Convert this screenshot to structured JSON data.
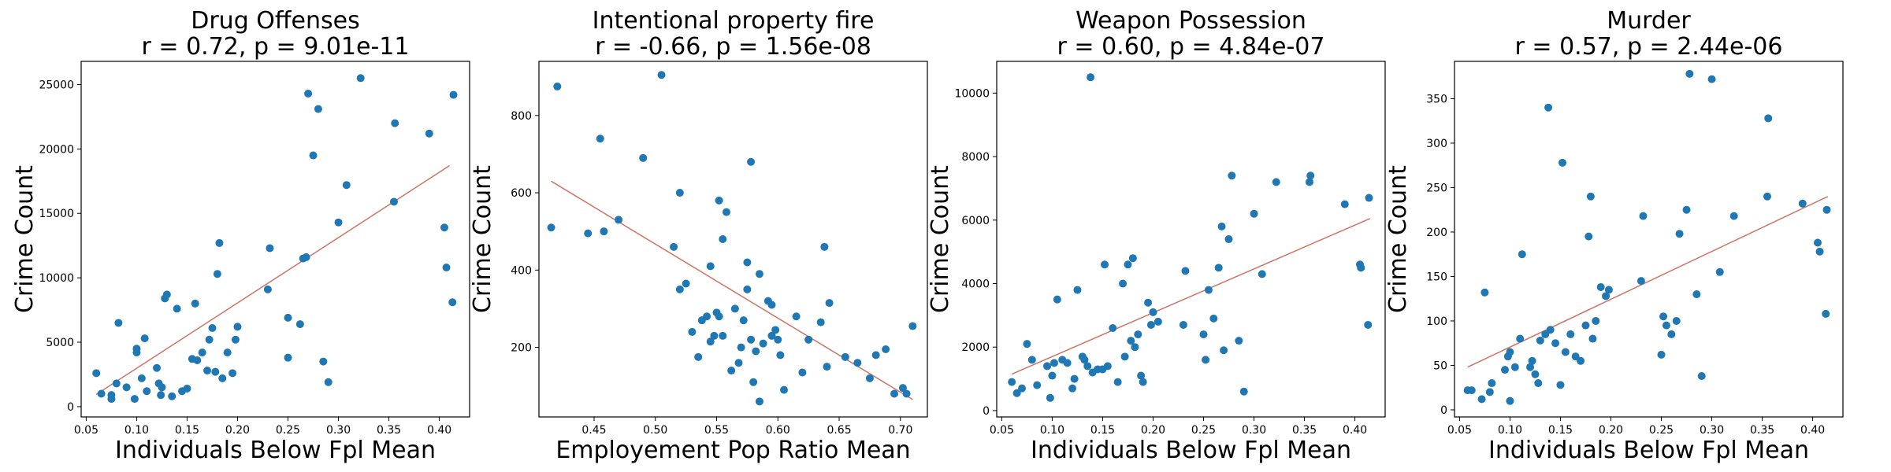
{
  "chart_data": [
    {
      "type": "scatter",
      "title_line1": "Drug Offenses",
      "title_line2": "r = 0.72, p = 9.01e-11",
      "xlabel": "Individuals Below Fpl Mean",
      "ylabel": "Crime Count",
      "xlim": [
        0.045,
        0.43
      ],
      "ylim": [
        -800,
        26800
      ],
      "xticks": [
        0.05,
        0.1,
        0.15,
        0.2,
        0.25,
        0.3,
        0.35,
        0.4
      ],
      "xtick_labels": [
        "0.05",
        "0.10",
        "0.15",
        "0.20",
        "0.25",
        "0.30",
        "0.35",
        "0.40"
      ],
      "yticks": [
        0,
        5000,
        10000,
        15000,
        20000,
        25000
      ],
      "ytick_labels": [
        "0",
        "5000",
        "10000",
        "15000",
        "20000",
        "25000"
      ],
      "points": [
        [
          0.06,
          2600
        ],
        [
          0.065,
          1000
        ],
        [
          0.075,
          900
        ],
        [
          0.075,
          600
        ],
        [
          0.08,
          1800
        ],
        [
          0.082,
          6500
        ],
        [
          0.09,
          1500
        ],
        [
          0.1,
          4500
        ],
        [
          0.1,
          4200
        ],
        [
          0.098,
          600
        ],
        [
          0.105,
          2200
        ],
        [
          0.108,
          5300
        ],
        [
          0.11,
          1200
        ],
        [
          0.12,
          3000
        ],
        [
          0.122,
          1800
        ],
        [
          0.124,
          900
        ],
        [
          0.125,
          1500
        ],
        [
          0.128,
          8400
        ],
        [
          0.13,
          8700
        ],
        [
          0.135,
          800
        ],
        [
          0.14,
          7600
        ],
        [
          0.145,
          1200
        ],
        [
          0.15,
          1400
        ],
        [
          0.155,
          3700
        ],
        [
          0.158,
          8000
        ],
        [
          0.16,
          3600
        ],
        [
          0.165,
          4200
        ],
        [
          0.17,
          2800
        ],
        [
          0.172,
          5200
        ],
        [
          0.175,
          6100
        ],
        [
          0.178,
          2700
        ],
        [
          0.18,
          10300
        ],
        [
          0.182,
          12700
        ],
        [
          0.185,
          2200
        ],
        [
          0.19,
          4200
        ],
        [
          0.195,
          2600
        ],
        [
          0.198,
          5200
        ],
        [
          0.2,
          6200
        ],
        [
          0.23,
          9100
        ],
        [
          0.232,
          12300
        ],
        [
          0.25,
          6900
        ],
        [
          0.25,
          3800
        ],
        [
          0.262,
          6400
        ],
        [
          0.265,
          11500
        ],
        [
          0.268,
          11600
        ],
        [
          0.27,
          24300
        ],
        [
          0.275,
          19500
        ],
        [
          0.28,
          23100
        ],
        [
          0.285,
          3500
        ],
        [
          0.29,
          1900
        ],
        [
          0.3,
          14300
        ],
        [
          0.308,
          17200
        ],
        [
          0.322,
          25500
        ],
        [
          0.355,
          15900
        ],
        [
          0.356,
          22000
        ],
        [
          0.39,
          21200
        ],
        [
          0.405,
          13900
        ],
        [
          0.407,
          10800
        ],
        [
          0.413,
          8100
        ],
        [
          0.414,
          24200
        ]
      ],
      "trend": [
        [
          0.06,
          950
        ],
        [
          0.41,
          18700
        ]
      ],
      "point_color": "#1f77b4",
      "line_color": "#cd7366"
    },
    {
      "type": "scatter",
      "title_line1": "Intentional property fire",
      "title_line2": "r = -0.66, p = 1.56e-08",
      "xlabel": "Employement Pop Ratio Mean",
      "ylabel": "Crime Count",
      "xlim": [
        0.405,
        0.722
      ],
      "ylim": [
        20,
        940
      ],
      "xticks": [
        0.45,
        0.5,
        0.55,
        0.6,
        0.65,
        0.7
      ],
      "xtick_labels": [
        "0.45",
        "0.50",
        "0.55",
        "0.60",
        "0.65",
        "0.70"
      ],
      "yticks": [
        200,
        400,
        600,
        800
      ],
      "ytick_labels": [
        "200",
        "400",
        "600",
        "800"
      ],
      "points": [
        [
          0.415,
          510
        ],
        [
          0.42,
          875
        ],
        [
          0.445,
          495
        ],
        [
          0.455,
          740
        ],
        [
          0.458,
          500
        ],
        [
          0.47,
          530
        ],
        [
          0.49,
          690
        ],
        [
          0.505,
          905
        ],
        [
          0.515,
          460
        ],
        [
          0.52,
          350
        ],
        [
          0.52,
          600
        ],
        [
          0.525,
          365
        ],
        [
          0.53,
          240
        ],
        [
          0.535,
          175
        ],
        [
          0.538,
          270
        ],
        [
          0.542,
          280
        ],
        [
          0.545,
          410
        ],
        [
          0.545,
          215
        ],
        [
          0.548,
          230
        ],
        [
          0.55,
          290
        ],
        [
          0.552,
          280
        ],
        [
          0.552,
          580
        ],
        [
          0.555,
          230
        ],
        [
          0.555,
          480
        ],
        [
          0.558,
          550
        ],
        [
          0.562,
          140
        ],
        [
          0.565,
          300
        ],
        [
          0.568,
          160
        ],
        [
          0.57,
          200
        ],
        [
          0.572,
          270
        ],
        [
          0.575,
          420
        ],
        [
          0.575,
          350
        ],
        [
          0.578,
          680
        ],
        [
          0.578,
          220
        ],
        [
          0.58,
          110
        ],
        [
          0.582,
          190
        ],
        [
          0.585,
          390
        ],
        [
          0.585,
          60
        ],
        [
          0.588,
          210
        ],
        [
          0.592,
          320
        ],
        [
          0.595,
          310
        ],
        [
          0.595,
          230
        ],
        [
          0.598,
          245
        ],
        [
          0.6,
          220
        ],
        [
          0.602,
          180
        ],
        [
          0.605,
          90
        ],
        [
          0.615,
          280
        ],
        [
          0.62,
          135
        ],
        [
          0.625,
          220
        ],
        [
          0.635,
          265
        ],
        [
          0.638,
          460
        ],
        [
          0.64,
          150
        ],
        [
          0.642,
          315
        ],
        [
          0.655,
          175
        ],
        [
          0.665,
          160
        ],
        [
          0.675,
          120
        ],
        [
          0.68,
          180
        ],
        [
          0.688,
          195
        ],
        [
          0.695,
          80
        ],
        [
          0.702,
          95
        ],
        [
          0.705,
          80
        ],
        [
          0.71,
          255
        ]
      ],
      "trend": [
        [
          0.415,
          630
        ],
        [
          0.71,
          65
        ]
      ],
      "point_color": "#1f77b4",
      "line_color": "#cd7366"
    },
    {
      "type": "scatter",
      "title_line1": "Weapon Possession",
      "title_line2": "r = 0.60, p = 4.84e-07",
      "xlabel": "Individuals Below Fpl Mean",
      "ylabel": "Crime Count",
      "xlim": [
        0.045,
        0.43
      ],
      "ylim": [
        -200,
        11000
      ],
      "xticks": [
        0.05,
        0.1,
        0.15,
        0.2,
        0.25,
        0.3,
        0.35,
        0.4
      ],
      "xtick_labels": [
        "0.05",
        "0.10",
        "0.15",
        "0.20",
        "0.25",
        "0.30",
        "0.35",
        "0.40"
      ],
      "yticks": [
        0,
        2000,
        4000,
        6000,
        8000,
        10000
      ],
      "ytick_labels": [
        "0",
        "2000",
        "4000",
        "6000",
        "8000",
        "10000"
      ],
      "points": [
        [
          0.06,
          900
        ],
        [
          0.065,
          550
        ],
        [
          0.07,
          700
        ],
        [
          0.075,
          2100
        ],
        [
          0.08,
          1600
        ],
        [
          0.085,
          800
        ],
        [
          0.095,
          1400
        ],
        [
          0.098,
          400
        ],
        [
          0.1,
          1100
        ],
        [
          0.102,
          1500
        ],
        [
          0.105,
          3500
        ],
        [
          0.11,
          1600
        ],
        [
          0.115,
          1500
        ],
        [
          0.12,
          700
        ],
        [
          0.122,
          1000
        ],
        [
          0.125,
          3800
        ],
        [
          0.13,
          1700
        ],
        [
          0.132,
          1600
        ],
        [
          0.135,
          1400
        ],
        [
          0.138,
          10500
        ],
        [
          0.14,
          1200
        ],
        [
          0.145,
          1300
        ],
        [
          0.15,
          1300
        ],
        [
          0.152,
          4600
        ],
        [
          0.155,
          1400
        ],
        [
          0.16,
          2600
        ],
        [
          0.165,
          900
        ],
        [
          0.17,
          4000
        ],
        [
          0.172,
          1700
        ],
        [
          0.175,
          4600
        ],
        [
          0.178,
          2200
        ],
        [
          0.18,
          4800
        ],
        [
          0.182,
          2000
        ],
        [
          0.185,
          2400
        ],
        [
          0.188,
          1100
        ],
        [
          0.19,
          900
        ],
        [
          0.195,
          3400
        ],
        [
          0.198,
          2700
        ],
        [
          0.2,
          3100
        ],
        [
          0.205,
          2800
        ],
        [
          0.23,
          2700
        ],
        [
          0.232,
          4400
        ],
        [
          0.25,
          2400
        ],
        [
          0.252,
          1600
        ],
        [
          0.255,
          3800
        ],
        [
          0.26,
          2900
        ],
        [
          0.265,
          4500
        ],
        [
          0.268,
          5800
        ],
        [
          0.27,
          1900
        ],
        [
          0.275,
          5400
        ],
        [
          0.278,
          7400
        ],
        [
          0.285,
          2200
        ],
        [
          0.29,
          600
        ],
        [
          0.3,
          6200
        ],
        [
          0.308,
          4300
        ],
        [
          0.322,
          7200
        ],
        [
          0.355,
          7200
        ],
        [
          0.356,
          7400
        ],
        [
          0.39,
          6500
        ],
        [
          0.405,
          4600
        ],
        [
          0.406,
          4500
        ],
        [
          0.413,
          2700
        ],
        [
          0.414,
          6700
        ]
      ],
      "trend": [
        [
          0.06,
          1150
        ],
        [
          0.415,
          6050
        ]
      ],
      "point_color": "#1f77b4",
      "line_color": "#cd7366"
    },
    {
      "type": "scatter",
      "title_line1": "Murder",
      "title_line2": "r = 0.57, p = 2.44e-06",
      "xlabel": "Individuals Below Fpl Mean",
      "ylabel": "Crime Count",
      "xlim": [
        0.045,
        0.43
      ],
      "ylim": [
        -8,
        392
      ],
      "xticks": [
        0.05,
        0.1,
        0.15,
        0.2,
        0.25,
        0.3,
        0.35,
        0.4
      ],
      "xtick_labels": [
        "0.05",
        "0.10",
        "0.15",
        "0.20",
        "0.25",
        "0.30",
        "0.35",
        "0.40"
      ],
      "yticks": [
        0,
        50,
        100,
        150,
        200,
        250,
        300,
        350
      ],
      "ytick_labels": [
        "0",
        "50",
        "100",
        "150",
        "200",
        "250",
        "300",
        "350"
      ],
      "points": [
        [
          0.058,
          22
        ],
        [
          0.062,
          22
        ],
        [
          0.072,
          12
        ],
        [
          0.075,
          132
        ],
        [
          0.08,
          20
        ],
        [
          0.082,
          30
        ],
        [
          0.095,
          45
        ],
        [
          0.098,
          60
        ],
        [
          0.1,
          65
        ],
        [
          0.1,
          10
        ],
        [
          0.105,
          48
        ],
        [
          0.11,
          80
        ],
        [
          0.112,
          175
        ],
        [
          0.12,
          48
        ],
        [
          0.122,
          55
        ],
        [
          0.125,
          40
        ],
        [
          0.128,
          30
        ],
        [
          0.13,
          78
        ],
        [
          0.135,
          85
        ],
        [
          0.138,
          340
        ],
        [
          0.14,
          90
        ],
        [
          0.145,
          75
        ],
        [
          0.15,
          28
        ],
        [
          0.152,
          278
        ],
        [
          0.155,
          65
        ],
        [
          0.16,
          85
        ],
        [
          0.165,
          60
        ],
        [
          0.17,
          55
        ],
        [
          0.175,
          95
        ],
        [
          0.178,
          195
        ],
        [
          0.18,
          240
        ],
        [
          0.182,
          80
        ],
        [
          0.185,
          100
        ],
        [
          0.19,
          138
        ],
        [
          0.195,
          128
        ],
        [
          0.198,
          135
        ],
        [
          0.23,
          145
        ],
        [
          0.232,
          218
        ],
        [
          0.25,
          62
        ],
        [
          0.252,
          105
        ],
        [
          0.255,
          95
        ],
        [
          0.26,
          85
        ],
        [
          0.265,
          100
        ],
        [
          0.268,
          198
        ],
        [
          0.275,
          225
        ],
        [
          0.278,
          378
        ],
        [
          0.285,
          130
        ],
        [
          0.29,
          38
        ],
        [
          0.3,
          372
        ],
        [
          0.308,
          155
        ],
        [
          0.322,
          218
        ],
        [
          0.355,
          240
        ],
        [
          0.356,
          328
        ],
        [
          0.39,
          232
        ],
        [
          0.405,
          188
        ],
        [
          0.407,
          178
        ],
        [
          0.413,
          108
        ],
        [
          0.414,
          225
        ]
      ],
      "trend": [
        [
          0.058,
          48
        ],
        [
          0.415,
          240
        ]
      ],
      "point_color": "#1f77b4",
      "line_color": "#cd7366"
    }
  ]
}
